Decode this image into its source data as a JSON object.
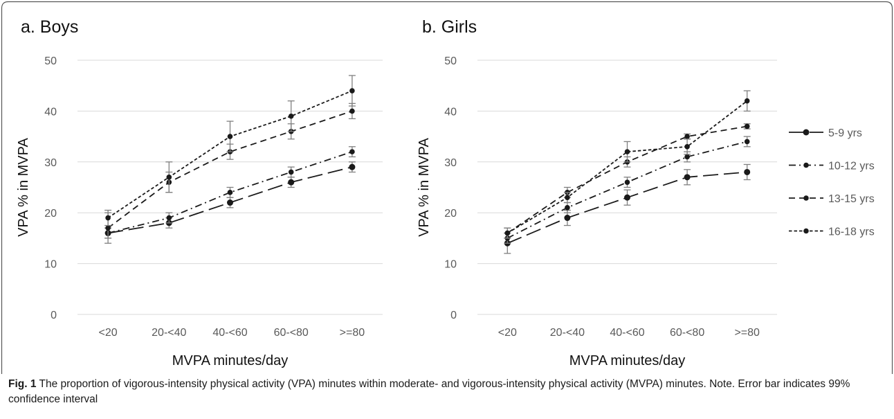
{
  "figure": {
    "caption_label": "Fig. 1",
    "caption_text": " The proportion of vigorous-intensity physical activity (VPA) minutes within moderate- and vigorous-intensity physical activity (MVPA) minutes. Note. Error bar indicates 99% confidence interval"
  },
  "colors": {
    "axis_text": "#595959",
    "gridline": "#d9d9d9",
    "line": "#1a1a1a",
    "error_bar": "#7f7f7f",
    "frame": "#555555"
  },
  "legend": {
    "placement": "right",
    "items": [
      {
        "label": "5-9 yrs",
        "dash": "long-dash"
      },
      {
        "label": "10-12 yrs",
        "dash": "dash-dot"
      },
      {
        "label": "13-15 yrs",
        "dash": "dash"
      },
      {
        "label": "16-18 yrs",
        "dash": "short-dash"
      }
    ]
  },
  "chart_data": [
    {
      "type": "line",
      "title": "a. Boys",
      "xlabel": "MVPA minutes/day",
      "ylabel": "VPA % in MVPA",
      "categories": [
        "<20",
        "20-<40",
        "40-<60",
        "60-<80",
        ">=80"
      ],
      "ylim": [
        0,
        50
      ],
      "yticks": [
        0,
        10,
        20,
        30,
        40,
        50
      ],
      "grid": "horizontal",
      "error_bars": "99% confidence interval",
      "series": [
        {
          "name": "5-9 yrs",
          "values": [
            16,
            18,
            22,
            26,
            29
          ],
          "lower": [
            15,
            17,
            21,
            25,
            28
          ],
          "upper": [
            17,
            19,
            23,
            27,
            30
          ]
        },
        {
          "name": "10-12 yrs",
          "values": [
            16,
            19,
            24,
            28,
            32
          ],
          "lower": [
            15,
            18,
            23,
            27,
            31
          ],
          "upper": [
            17,
            20,
            25,
            29,
            33
          ]
        },
        {
          "name": "13-15 yrs",
          "values": [
            17,
            26,
            32,
            36,
            40
          ],
          "lower": [
            14,
            24,
            30.5,
            34.5,
            38.5
          ],
          "upper": [
            20,
            28,
            33.5,
            37.5,
            41.5
          ]
        },
        {
          "name": "16-18 yrs",
          "values": [
            19,
            27,
            35,
            39,
            44
          ],
          "lower": [
            17.5,
            24,
            32,
            36,
            41
          ],
          "upper": [
            20.5,
            30,
            38,
            42,
            47
          ]
        }
      ]
    },
    {
      "type": "line",
      "title": "b. Girls",
      "xlabel": "MVPA minutes/day",
      "ylabel": "VPA % in MVPA",
      "categories": [
        "<20",
        "20-<40",
        "40-<60",
        "60-<80",
        ">=80"
      ],
      "ylim": [
        0,
        50
      ],
      "yticks": [
        0,
        10,
        20,
        30,
        40,
        50
      ],
      "grid": "horizontal",
      "error_bars": "99% confidence interval",
      "series": [
        {
          "name": "5-9 yrs",
          "values": [
            14,
            19,
            23,
            27,
            28
          ],
          "lower": [
            12,
            17.5,
            21.5,
            25.5,
            26.5
          ],
          "upper": [
            16,
            20.5,
            24.5,
            28.5,
            29.5
          ]
        },
        {
          "name": "10-12 yrs",
          "values": [
            15,
            21,
            26,
            31,
            34
          ],
          "lower": [
            14,
            20,
            25,
            30,
            33
          ],
          "upper": [
            16,
            22,
            27,
            32,
            35
          ]
        },
        {
          "name": "13-15 yrs",
          "values": [
            16,
            24,
            30,
            35,
            37
          ],
          "lower": [
            15,
            23,
            29,
            34.5,
            36.5
          ],
          "upper": [
            17,
            25,
            31,
            35.5,
            37.5
          ]
        },
        {
          "name": "16-18 yrs",
          "values": [
            16,
            23,
            32,
            33,
            42
          ],
          "lower": [
            15,
            22,
            30,
            31.5,
            40
          ],
          "upper": [
            17,
            24,
            34,
            34.5,
            44
          ]
        }
      ]
    }
  ]
}
